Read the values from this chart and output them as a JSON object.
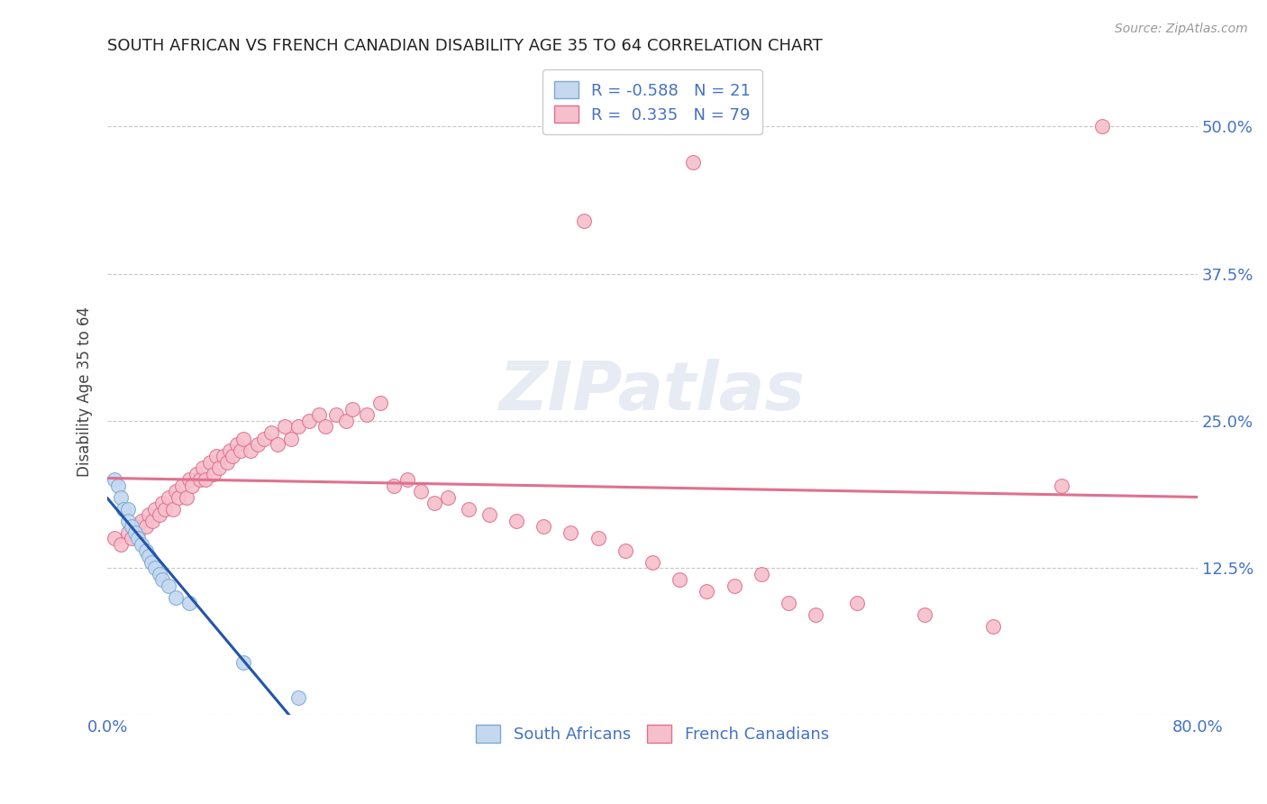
{
  "title": "SOUTH AFRICAN VS FRENCH CANADIAN DISABILITY AGE 35 TO 64 CORRELATION CHART",
  "source": "Source: ZipAtlas.com",
  "ylabel": "Disability Age 35 to 64",
  "xlim": [
    0.0,
    0.8
  ],
  "ylim": [
    0.0,
    0.55
  ],
  "x_ticks": [
    0.0,
    0.1,
    0.2,
    0.3,
    0.4,
    0.5,
    0.6,
    0.7,
    0.8
  ],
  "x_tick_labels": [
    "0.0%",
    "",
    "",
    "",
    "",
    "",
    "",
    "",
    "80.0%"
  ],
  "y_ticks": [
    0.0,
    0.125,
    0.25,
    0.375,
    0.5
  ],
  "y_tick_labels": [
    "",
    "12.5%",
    "25.0%",
    "37.5%",
    "50.0%"
  ],
  "background_color": "#ffffff",
  "grid_color": "#c8c8c8",
  "sa_color": "#c5d8f0",
  "sa_edge_color": "#7aaad4",
  "fc_color": "#f5c0cb",
  "fc_edge_color": "#e07090",
  "sa_line_color": "#2255aa",
  "fc_line_color": "#e07090",
  "r_sa": -0.588,
  "n_sa": 21,
  "r_fc": 0.335,
  "n_fc": 79,
  "sa_x": [
    0.005,
    0.008,
    0.01,
    0.012,
    0.015,
    0.015,
    0.018,
    0.02,
    0.022,
    0.025,
    0.028,
    0.03,
    0.032,
    0.035,
    0.038,
    0.04,
    0.045,
    0.05,
    0.06,
    0.1,
    0.14
  ],
  "sa_y": [
    0.2,
    0.195,
    0.185,
    0.175,
    0.175,
    0.165,
    0.16,
    0.155,
    0.15,
    0.145,
    0.14,
    0.135,
    0.13,
    0.125,
    0.12,
    0.115,
    0.11,
    0.1,
    0.095,
    0.045,
    0.015
  ],
  "fc_x": [
    0.005,
    0.01,
    0.015,
    0.018,
    0.02,
    0.022,
    0.025,
    0.028,
    0.03,
    0.033,
    0.035,
    0.038,
    0.04,
    0.042,
    0.045,
    0.048,
    0.05,
    0.052,
    0.055,
    0.058,
    0.06,
    0.062,
    0.065,
    0.068,
    0.07,
    0.072,
    0.075,
    0.078,
    0.08,
    0.082,
    0.085,
    0.088,
    0.09,
    0.092,
    0.095,
    0.098,
    0.1,
    0.105,
    0.11,
    0.115,
    0.12,
    0.125,
    0.13,
    0.135,
    0.14,
    0.148,
    0.155,
    0.16,
    0.168,
    0.175,
    0.18,
    0.19,
    0.2,
    0.21,
    0.22,
    0.23,
    0.24,
    0.25,
    0.265,
    0.28,
    0.3,
    0.32,
    0.34,
    0.36,
    0.38,
    0.4,
    0.42,
    0.44,
    0.46,
    0.48,
    0.5,
    0.52,
    0.55,
    0.6,
    0.65,
    0.7,
    0.35,
    0.43,
    0.73
  ],
  "fc_y": [
    0.15,
    0.145,
    0.155,
    0.15,
    0.16,
    0.155,
    0.165,
    0.16,
    0.17,
    0.165,
    0.175,
    0.17,
    0.18,
    0.175,
    0.185,
    0.175,
    0.19,
    0.185,
    0.195,
    0.185,
    0.2,
    0.195,
    0.205,
    0.2,
    0.21,
    0.2,
    0.215,
    0.205,
    0.22,
    0.21,
    0.22,
    0.215,
    0.225,
    0.22,
    0.23,
    0.225,
    0.235,
    0.225,
    0.23,
    0.235,
    0.24,
    0.23,
    0.245,
    0.235,
    0.245,
    0.25,
    0.255,
    0.245,
    0.255,
    0.25,
    0.26,
    0.255,
    0.265,
    0.195,
    0.2,
    0.19,
    0.18,
    0.185,
    0.175,
    0.17,
    0.165,
    0.16,
    0.155,
    0.15,
    0.14,
    0.13,
    0.115,
    0.105,
    0.11,
    0.12,
    0.095,
    0.085,
    0.095,
    0.085,
    0.075,
    0.195,
    0.42,
    0.47,
    0.5
  ]
}
